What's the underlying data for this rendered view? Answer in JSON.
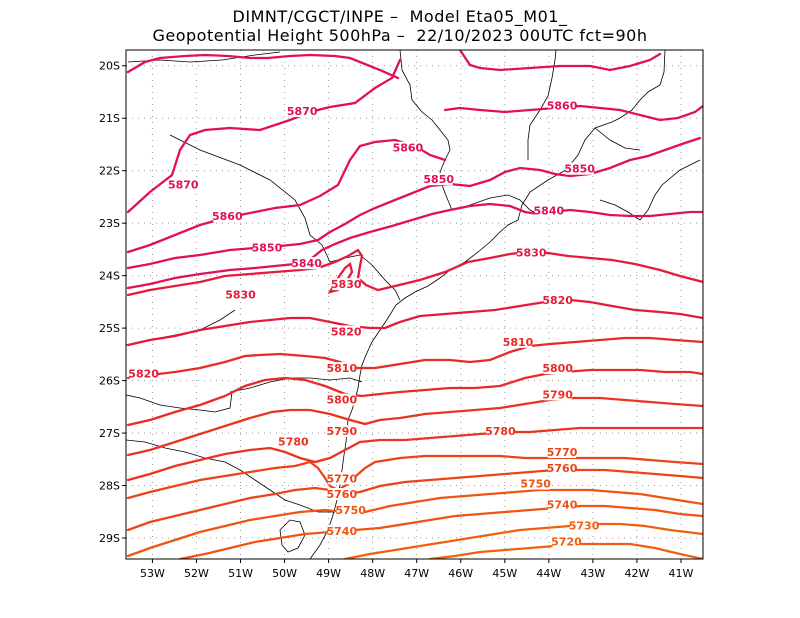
{
  "header": {
    "line1": "DIMNT/CGCT/INPE –  Model Eta05_M01_",
    "line2": "Geopotential Height 500hPa –  22/10/2023 00UTC fct=90h"
  },
  "axes": {
    "lat_labels": [
      "20S",
      "21S",
      "22S",
      "23S",
      "24S",
      "25S",
      "26S",
      "27S",
      "28S",
      "29S"
    ],
    "lon_labels": [
      "53W",
      "52W",
      "51W",
      "50W",
      "49W",
      "48W",
      "47W",
      "46W",
      "45W",
      "44W",
      "43W",
      "42W",
      "41W"
    ],
    "lat_values": [
      -20,
      -21,
      -22,
      -23,
      -24,
      -25,
      -26,
      -27,
      -28,
      -29
    ],
    "lon_values": [
      -53,
      -52,
      -51,
      -50,
      -49,
      -48,
      -47,
      -46,
      -45,
      -44,
      -43,
      -42,
      -41
    ],
    "lat_range": [
      -29.4,
      -19.7
    ],
    "lon_range": [
      -53.6,
      -40.5
    ],
    "grid": "dotted"
  },
  "contours": [
    {
      "level": 5870,
      "color": "#e0105a",
      "labels": [
        {
          "text": "5870",
          "lon": -52.3,
          "lat": -22.3
        },
        {
          "text": "5870",
          "lon": -49.6,
          "lat": -20.9
        }
      ]
    },
    {
      "level": 5860,
      "color": "#e0105a",
      "labels": [
        {
          "text": "5860",
          "lon": -51.3,
          "lat": -22.9
        },
        {
          "text": "5860",
          "lon": -47.2,
          "lat": -21.6
        },
        {
          "text": "5860",
          "lon": -43.7,
          "lat": -20.8
        }
      ]
    },
    {
      "level": 5850,
      "color": "#e0105a",
      "labels": [
        {
          "text": "5850",
          "lon": -50.4,
          "lat": -23.5
        },
        {
          "text": "5850",
          "lon": -46.5,
          "lat": -22.2
        },
        {
          "text": "5850",
          "lon": -43.3,
          "lat": -22.0
        }
      ]
    },
    {
      "level": 5840,
      "color": "#e0105a",
      "labels": [
        {
          "text": "5840",
          "lon": -49.5,
          "lat": -23.8
        },
        {
          "text": "5840",
          "lon": -44.0,
          "lat": -22.8
        }
      ]
    },
    {
      "level": 5830,
      "color": "#e51b3c",
      "labels": [
        {
          "text": "5830",
          "lon": -51.0,
          "lat": -24.4
        },
        {
          "text": "5830",
          "lon": -48.6,
          "lat": -24.2
        },
        {
          "text": "5830",
          "lon": -44.4,
          "lat": -23.6
        }
      ]
    },
    {
      "level": 5820,
      "color": "#e51b3c",
      "labels": [
        {
          "text": "5820",
          "lon": -53.2,
          "lat": -25.9
        },
        {
          "text": "5820",
          "lon": -48.6,
          "lat": -25.1
        },
        {
          "text": "5820",
          "lon": -43.8,
          "lat": -24.5
        }
      ]
    },
    {
      "level": 5810,
      "color": "#e82a28",
      "labels": [
        {
          "text": "5810",
          "lon": -48.7,
          "lat": -25.8
        },
        {
          "text": "5810",
          "lon": -44.7,
          "lat": -25.3
        }
      ]
    },
    {
      "level": 5800,
      "color": "#e82a28",
      "labels": [
        {
          "text": "5800",
          "lon": -48.7,
          "lat": -26.4
        },
        {
          "text": "5800",
          "lon": -43.8,
          "lat": -25.8
        }
      ]
    },
    {
      "level": 5790,
      "color": "#ea3420",
      "labels": [
        {
          "text": "5790",
          "lon": -48.7,
          "lat": -27.0
        },
        {
          "text": "5790",
          "lon": -43.8,
          "lat": -26.3
        }
      ]
    },
    {
      "level": 5780,
      "color": "#ea3420",
      "labels": [
        {
          "text": "5780",
          "lon": -49.8,
          "lat": -27.2
        },
        {
          "text": "5780",
          "lon": -45.1,
          "lat": -27.0
        }
      ]
    },
    {
      "level": 5770,
      "color": "#ec4418",
      "labels": [
        {
          "text": "5770",
          "lon": -48.7,
          "lat": -27.9
        },
        {
          "text": "5770",
          "lon": -43.7,
          "lat": -27.4
        }
      ]
    },
    {
      "level": 5760,
      "color": "#ec4418",
      "labels": [
        {
          "text": "5760",
          "lon": -48.7,
          "lat": -28.2
        },
        {
          "text": "5760",
          "lon": -43.7,
          "lat": -27.7
        }
      ]
    },
    {
      "level": 5750,
      "color": "#ef5412",
      "labels": [
        {
          "text": "5750",
          "lon": -48.5,
          "lat": -28.5
        },
        {
          "text": "5750",
          "lon": -44.3,
          "lat": -28.0
        }
      ]
    },
    {
      "level": 5740,
      "color": "#ef5412",
      "labels": [
        {
          "text": "5740",
          "lon": -48.7,
          "lat": -28.9
        },
        {
          "text": "5740",
          "lon": -43.7,
          "lat": -28.4
        }
      ]
    },
    {
      "level": 5730,
      "color": "#f06010",
      "labels": [
        {
          "text": "5730",
          "lon": -43.2,
          "lat": -28.8
        }
      ]
    },
    {
      "level": 5720,
      "color": "#f06010",
      "labels": [
        {
          "text": "5720",
          "lon": -43.6,
          "lat": -29.1
        }
      ]
    }
  ]
}
